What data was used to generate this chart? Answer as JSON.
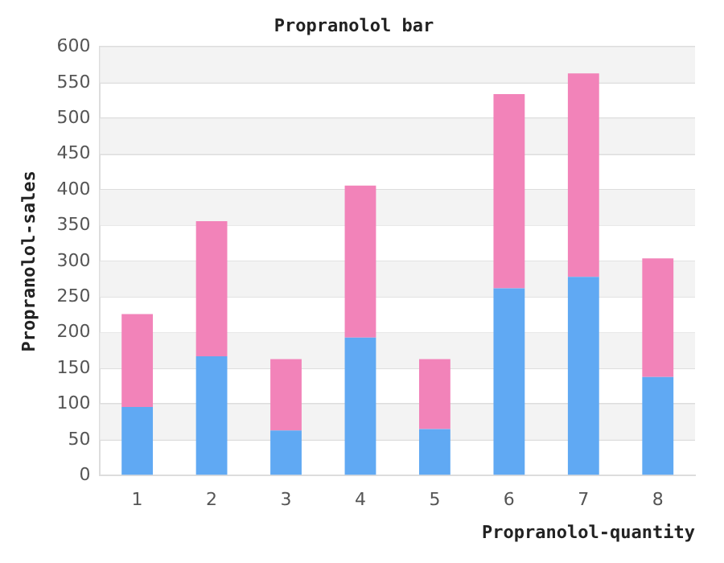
{
  "chart_data": {
    "type": "bar",
    "title": "Propranolol bar",
    "xlabel": "Propranolol-quantity",
    "ylabel": "Propranolol-sales",
    "categories": [
      "1",
      "2",
      "3",
      "4",
      "5",
      "6",
      "7",
      "8"
    ],
    "stacked": true,
    "series": [
      {
        "color": "#60a9f3",
        "values": [
          96,
          167,
          63,
          193,
          65,
          262,
          278,
          138
        ]
      },
      {
        "color": "#f283b9",
        "values": [
          130,
          189,
          100,
          213,
          98,
          272,
          285,
          166
        ]
      }
    ],
    "ylim": [
      0,
      600
    ],
    "yticks": [
      0,
      50,
      100,
      150,
      200,
      250,
      300,
      350,
      400,
      450,
      500,
      550,
      600
    ],
    "grid": "y"
  }
}
